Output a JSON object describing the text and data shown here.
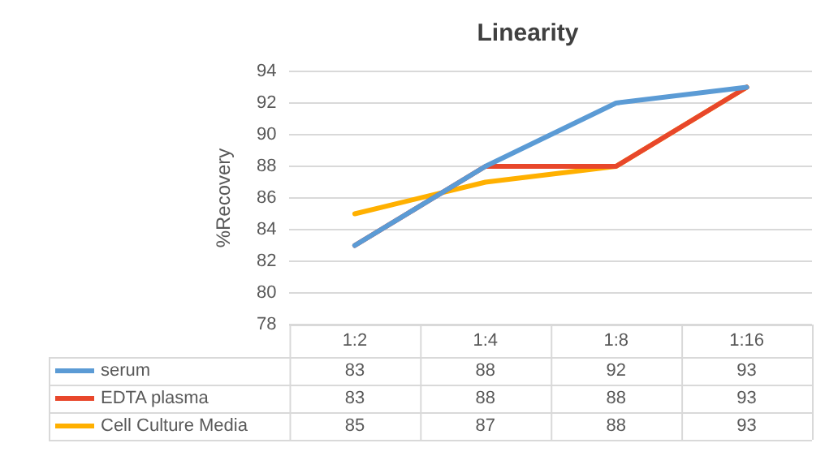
{
  "chart_data": {
    "type": "line",
    "title": "Linearity",
    "ylabel": "%Recovery",
    "categories": [
      "1:2",
      "1:4",
      "1:8",
      "1:16"
    ],
    "series": [
      {
        "name": "serum",
        "color": "#5b9bd5",
        "values": [
          83,
          88,
          92,
          93
        ]
      },
      {
        "name": "EDTA plasma",
        "color": "#e8472b",
        "values": [
          83,
          88,
          88,
          93
        ]
      },
      {
        "name": "Cell Culture Media",
        "color": "#ffb000",
        "values": [
          85,
          87,
          88,
          93
        ]
      }
    ],
    "ylim": [
      78,
      94
    ],
    "yticks": [
      78,
      80,
      82,
      84,
      86,
      88,
      90,
      92,
      94
    ],
    "grid": "y",
    "legend": "bottom",
    "marker": "none",
    "line_style": "solid",
    "data_labels": true
  }
}
